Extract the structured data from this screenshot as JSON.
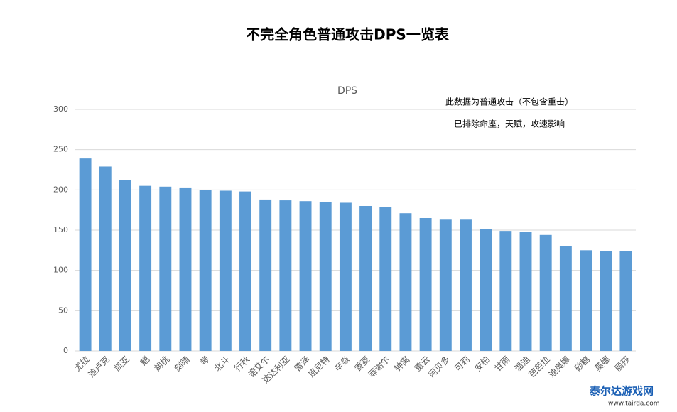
{
  "chart_data": {
    "type": "bar",
    "title": "不完全角色普通攻击DPS一览表",
    "subtitle": "DPS",
    "annotations": [
      "此数据为普通攻击（不包含重击）",
      "已排除命座，天赋，攻速影响"
    ],
    "watermark": [
      "泰尔达游戏网",
      "www.tairda.com"
    ],
    "categories": [
      "尤拉",
      "迪卢克",
      "凯亚",
      "魈",
      "胡桃",
      "刻晴",
      "琴",
      "北斗",
      "行秋",
      "诺艾尔",
      "达达利亚",
      "雷泽",
      "班尼特",
      "辛焱",
      "香菱",
      "菲谢尔",
      "钟离",
      "重云",
      "阿贝多",
      "可莉",
      "安柏",
      "甘雨",
      "温迪",
      "芭芭拉",
      "迪奥娜",
      "砂糖",
      "莫娜",
      "丽莎"
    ],
    "values": [
      239,
      229,
      212,
      205,
      204,
      203,
      200,
      199,
      198,
      188,
      187,
      186,
      185,
      184,
      180,
      179,
      171,
      165,
      163,
      163,
      151,
      149,
      148,
      144,
      130,
      125,
      124,
      124
    ],
    "color": "#5b9bd5",
    "ylim": [
      0,
      300
    ],
    "yticks": [
      0,
      50,
      100,
      150,
      200,
      250,
      300
    ],
    "grid": true
  }
}
